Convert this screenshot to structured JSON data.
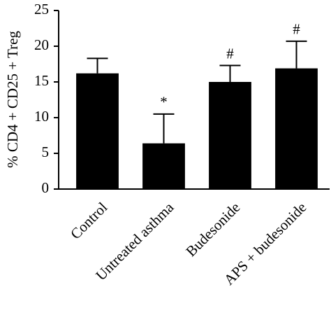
{
  "chart_data": {
    "type": "bar",
    "y_label": "% CD4 + CD25 + Treg",
    "categories": [
      "Control",
      "Untreated asthma",
      "Budesonide",
      "APS + budesonide"
    ],
    "values": [
      16.2,
      6.4,
      15.0,
      16.9
    ],
    "errors": [
      2.1,
      4.1,
      2.3,
      3.8
    ],
    "annotations": [
      null,
      "*",
      "#",
      "#"
    ],
    "color": "#000000",
    "ylim": [
      0,
      25
    ],
    "yticks": [
      0,
      5,
      10,
      15,
      20,
      25
    ],
    "grid": false
  }
}
